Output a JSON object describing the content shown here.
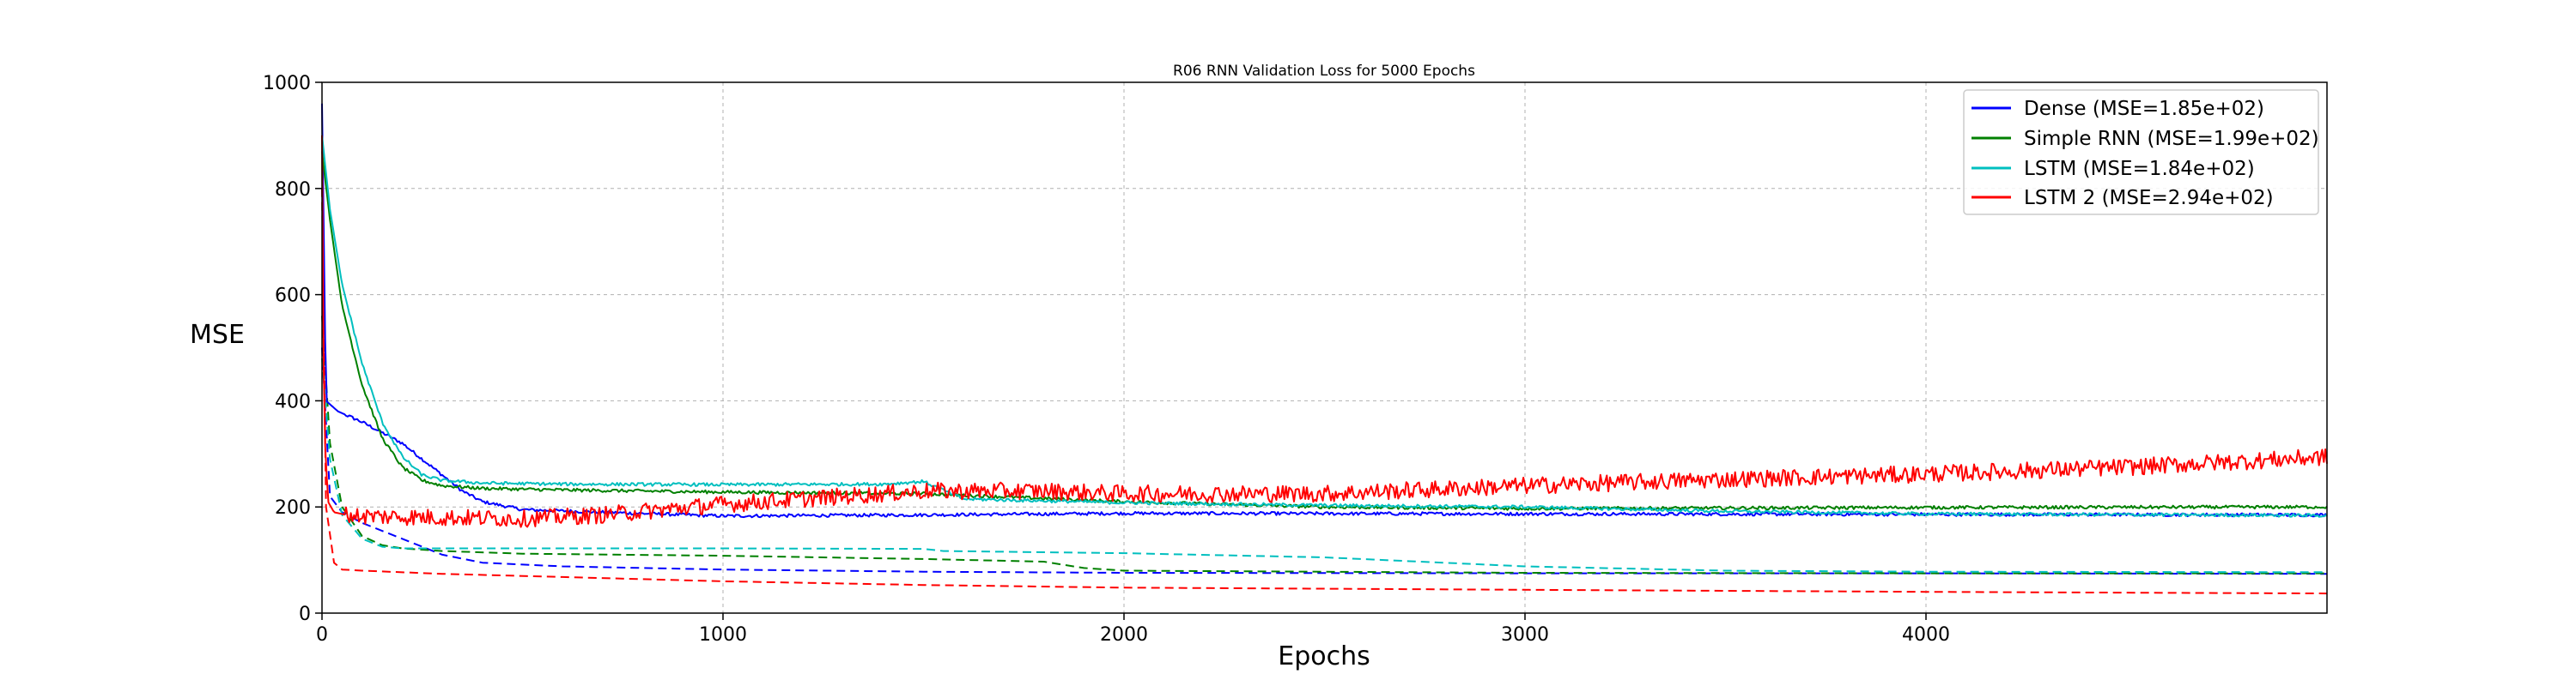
{
  "chart_data": {
    "type": "line",
    "title": "R06 RNN Validation Loss for  5000 Epochs",
    "xlabel": "Epochs",
    "ylabel": "MSE",
    "xlim": [
      0,
      5000
    ],
    "ylim": [
      0,
      1000
    ],
    "xticks": [
      0,
      1000,
      2000,
      3000,
      4000
    ],
    "yticks": [
      0,
      200,
      400,
      600,
      800,
      1000
    ],
    "grid": true,
    "legend_position": "top-right",
    "legend": [
      {
        "label": "Dense (MSE=1.85e+02)",
        "color": "#0000ff"
      },
      {
        "label": "Simple RNN (MSE=1.99e+02)",
        "color": "#008000"
      },
      {
        "label": "LSTM (MSE=1.84e+02)",
        "color": "#00bfbf"
      },
      {
        "label": "LSTM 2 (MSE=2.94e+02)",
        "color": "#ff0000"
      }
    ],
    "series": [
      {
        "name": "Dense (MSE=1.85e+02)",
        "style": "solid",
        "color": "#0000ff",
        "noise": 3,
        "x": [
          0,
          10,
          40,
          100,
          200,
          300,
          350,
          400,
          500,
          700,
          1000,
          1500,
          2000,
          3000,
          4000,
          5000
        ],
        "y": [
          960,
          400,
          380,
          360,
          320,
          260,
          230,
          210,
          195,
          190,
          183,
          185,
          188,
          187,
          186,
          185
        ]
      },
      {
        "name": "Dense (MSE=1.85e+02)",
        "style": "dashed",
        "color": "#0000ff",
        "noise": 0,
        "x": [
          0,
          20,
          50,
          100,
          200,
          300,
          400,
          600,
          1000,
          1500,
          2000,
          3000,
          4000,
          5000
        ],
        "y": [
          500,
          220,
          190,
          170,
          140,
          110,
          95,
          88,
          82,
          78,
          76,
          75,
          75,
          74
        ]
      },
      {
        "name": "Simple RNN (MSE=1.99e+02)",
        "style": "solid",
        "color": "#008000",
        "noise": 3,
        "x": [
          0,
          20,
          50,
          100,
          150,
          200,
          250,
          300,
          400,
          600,
          1000,
          1500,
          2000,
          2500,
          3000,
          4000,
          5000
        ],
        "y": [
          870,
          740,
          580,
          430,
          330,
          275,
          250,
          240,
          235,
          232,
          228,
          225,
          210,
          200,
          197,
          199,
          200
        ]
      },
      {
        "name": "Simple RNN (MSE=1.99e+02)",
        "style": "dashed",
        "color": "#008000",
        "noise": 0,
        "x": [
          0,
          20,
          50,
          100,
          150,
          200,
          300,
          500,
          1000,
          1500,
          1800,
          1900,
          2000,
          3000,
          4000,
          5000
        ],
        "y": [
          560,
          320,
          200,
          145,
          128,
          122,
          117,
          112,
          108,
          102,
          97,
          85,
          80,
          76,
          75,
          75
        ]
      },
      {
        "name": "LSTM (MSE=1.84e+02)",
        "style": "solid",
        "color": "#00bfbf",
        "noise": 3,
        "x": [
          0,
          20,
          50,
          100,
          150,
          200,
          250,
          300,
          400,
          600,
          1000,
          1400,
          1500,
          1600,
          2000,
          2500,
          3000,
          3500,
          4000,
          5000
        ],
        "y": [
          900,
          760,
          620,
          470,
          360,
          295,
          260,
          250,
          245,
          243,
          242,
          243,
          248,
          215,
          208,
          203,
          200,
          192,
          187,
          184
        ]
      },
      {
        "name": "LSTM (MSE=1.84e+02)",
        "style": "dashed",
        "color": "#00bfbf",
        "noise": 0,
        "x": [
          0,
          20,
          50,
          100,
          150,
          200,
          300,
          500,
          1000,
          1500,
          1550,
          2000,
          2500,
          3000,
          3500,
          4000,
          5000
        ],
        "y": [
          480,
          290,
          185,
          140,
          125,
          122,
          122,
          122,
          122,
          121,
          117,
          113,
          105,
          88,
          80,
          78,
          77
        ]
      },
      {
        "name": "LSTM 2 (MSE=2.94e+02)",
        "style": "solid",
        "color": "#ff0000",
        "noise": 16,
        "x": [
          0,
          5,
          15,
          30,
          60,
          100,
          300,
          500,
          700,
          1000,
          1300,
          1500,
          1800,
          2000,
          2500,
          3000,
          3500,
          4000,
          4500,
          5000
        ],
        "y": [
          900,
          360,
          210,
          190,
          185,
          183,
          180,
          178,
          185,
          205,
          220,
          230,
          230,
          225,
          225,
          240,
          252,
          262,
          275,
          294
        ]
      },
      {
        "name": "LSTM 2 (MSE=2.94e+02)",
        "style": "dashed",
        "color": "#ff0000",
        "noise": 0,
        "x": [
          0,
          10,
          30,
          50,
          100,
          300,
          600,
          1000,
          1500,
          2000,
          3000,
          4000,
          5000
        ],
        "y": [
          800,
          200,
          95,
          82,
          80,
          74,
          68,
          60,
          53,
          48,
          44,
          40,
          37
        ]
      }
    ]
  }
}
